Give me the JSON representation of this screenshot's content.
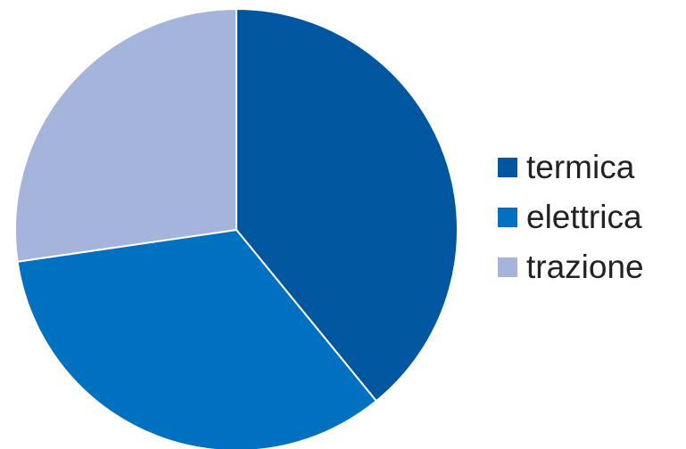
{
  "chart_data": {
    "type": "pie",
    "categories": [
      "termica",
      "elettrica",
      "trazione"
    ],
    "values": [
      39.1,
      33.6,
      27.3
    ],
    "colors": [
      "#0057a0",
      "#0070c0",
      "#a4b4da"
    ],
    "legend_position": "right"
  }
}
